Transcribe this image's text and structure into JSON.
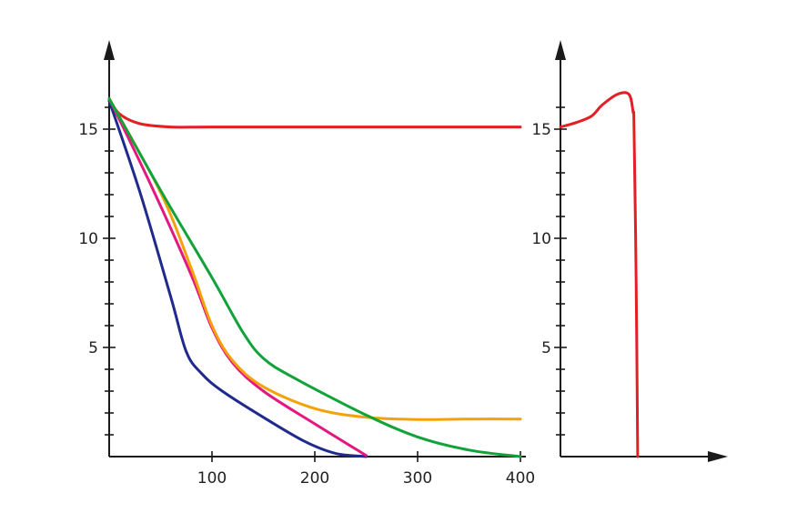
{
  "chart_data": [
    {
      "type": "line",
      "title": "",
      "xlabel": "",
      "ylabel": "",
      "xlim": [
        0,
        400
      ],
      "ylim": [
        0,
        17
      ],
      "x_ticks": [
        {
          "value": 100,
          "label": "100"
        },
        {
          "value": 200,
          "label": "200"
        },
        {
          "value": 300,
          "label": "300"
        },
        {
          "value": 400,
          "label": "400"
        }
      ],
      "y_ticks": [
        {
          "value": 5,
          "label": "5"
        },
        {
          "value": 10,
          "label": "10"
        },
        {
          "value": 15,
          "label": "15"
        }
      ],
      "grid": false,
      "series": [
        {
          "color": "#e31e24",
          "points": [
            [
              0,
              16.4
            ],
            [
              10,
              15.7
            ],
            [
              30,
              15.25
            ],
            [
              60,
              15.1
            ],
            [
              100,
              15.1
            ],
            [
              200,
              15.1
            ],
            [
              300,
              15.1
            ],
            [
              400,
              15.1
            ]
          ]
        },
        {
          "color": "#1f2a8c",
          "points": [
            [
              0,
              16.3
            ],
            [
              30,
              12.1
            ],
            [
              60,
              7.3
            ],
            [
              75,
              4.8
            ],
            [
              90,
              3.8
            ],
            [
              110,
              3.0
            ],
            [
              150,
              1.8
            ],
            [
              190,
              0.7
            ],
            [
              220,
              0.15
            ],
            [
              250,
              0.0
            ]
          ]
        },
        {
          "color": "#e5177e",
          "points": [
            [
              0,
              16.4
            ],
            [
              40,
              12.5
            ],
            [
              80,
              8.3
            ],
            [
              100,
              5.9
            ],
            [
              120,
              4.3
            ],
            [
              150,
              3.0
            ],
            [
              200,
              1.5
            ],
            [
              250,
              0.05
            ]
          ]
        },
        {
          "color": "#f5a20a",
          "points": [
            [
              0,
              16.4
            ],
            [
              50,
              12.1
            ],
            [
              80,
              8.6
            ],
            [
              100,
              6.0
            ],
            [
              120,
              4.4
            ],
            [
              150,
              3.2
            ],
            [
              200,
              2.2
            ],
            [
              250,
              1.8
            ],
            [
              300,
              1.7
            ],
            [
              350,
              1.72
            ],
            [
              400,
              1.72
            ]
          ]
        },
        {
          "color": "#12a23a",
          "points": [
            [
              0,
              16.4
            ],
            [
              50,
              12.2
            ],
            [
              100,
              8.2
            ],
            [
              130,
              5.7
            ],
            [
              150,
              4.5
            ],
            [
              180,
              3.6
            ],
            [
              250,
              1.9
            ],
            [
              300,
              0.9
            ],
            [
              350,
              0.3
            ],
            [
              400,
              0.0
            ]
          ]
        }
      ]
    },
    {
      "type": "line",
      "title": "",
      "xlabel": "",
      "ylabel": "",
      "xlim": [
        0,
        1
      ],
      "ylim": [
        0,
        17
      ],
      "x_ticks": [],
      "y_ticks": [
        {
          "value": 5,
          "label": "5"
        },
        {
          "value": 10,
          "label": "10"
        },
        {
          "value": 15,
          "label": "15"
        }
      ],
      "grid": false,
      "series": [
        {
          "color": "#e31e24",
          "points": [
            [
              0.0,
              15.1
            ],
            [
              0.15,
              15.3
            ],
            [
              0.3,
              15.6
            ],
            [
              0.4,
              16.1
            ],
            [
              0.55,
              16.6
            ],
            [
              0.66,
              16.6
            ],
            [
              0.7,
              15.8
            ],
            [
              0.71,
              15.0
            ],
            [
              0.73,
              8.0
            ],
            [
              0.745,
              0.0
            ]
          ]
        }
      ]
    }
  ]
}
